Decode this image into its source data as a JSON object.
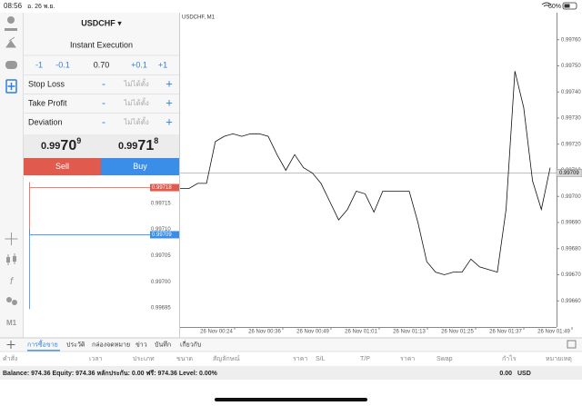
{
  "status_bar": {
    "time": "08:56",
    "date": "อ. 26 พ.ย.",
    "battery": "50%"
  },
  "sidebar": {
    "timeframe": "M1"
  },
  "order_panel": {
    "symbol": "USDCHF ▾",
    "mode": "Instant Execution",
    "volume_steps": [
      "-1",
      "-0.1",
      "0.70",
      "+0.1",
      "+1"
    ],
    "rows": [
      {
        "label": "Stop Loss",
        "minus": "-",
        "value": "ไม่ได้ตั้ง",
        "plus": "+"
      },
      {
        "label": "Take Profit",
        "minus": "-",
        "value": "ไม่ได้ตั้ง",
        "plus": "+"
      },
      {
        "label": "Deviation",
        "minus": "-",
        "value": "ไม่ได้ตั้ง",
        "plus": "+"
      }
    ],
    "sell_price": {
      "head": "0.99",
      "big": "70",
      "sup": "9"
    },
    "buy_price": {
      "head": "0.99",
      "big": "71",
      "sup": "8"
    },
    "sell": "Sell",
    "buy": "Buy"
  },
  "tick_chart": {
    "ylim": [
      0.9969,
      0.9972
    ],
    "yticks": [
      {
        "value": 0.99695,
        "label": "0.99695"
      },
      {
        "value": 0.997,
        "label": "0.99700"
      },
      {
        "value": 0.99705,
        "label": "0.99705"
      },
      {
        "value": 0.9971,
        "label": "0.99710"
      },
      {
        "value": 0.99715,
        "label": "0.99715"
      }
    ],
    "ask": {
      "value": 0.99718,
      "label": "0.99718",
      "color": "#e05a4d"
    },
    "bid": {
      "value": 0.99709,
      "label": "0.99709",
      "color": "#3a8ee8"
    }
  },
  "chart_data": {
    "type": "line",
    "title": "USDCHF, M1",
    "xtick_labels": [
      "26 Nov 00:24",
      "26 Nov 00:36",
      "26 Nov 00:49",
      "26 Nov 01:01",
      "26 Nov 01:13",
      "26 Nov 01:25",
      "26 Nov 01:37",
      "26 Nov 01:49"
    ],
    "values": [
      0.99703,
      0.99703,
      0.99705,
      0.99705,
      0.99721,
      0.99723,
      0.99724,
      0.99723,
      0.99724,
      0.99724,
      0.99723,
      0.99716,
      0.9971,
      0.99716,
      0.99711,
      0.99709,
      0.99705,
      0.99698,
      0.99691,
      0.99695,
      0.99702,
      0.99701,
      0.99694,
      0.99702,
      0.99702,
      0.99702,
      0.99702,
      0.9969,
      0.99675,
      0.99671,
      0.9967,
      0.99671,
      0.99671,
      0.99676,
      0.99673,
      0.99672,
      0.99671,
      0.99695,
      0.99748,
      0.99734,
      0.99706,
      0.99695,
      0.99711
    ],
    "color": "#111111",
    "ylim": [
      0.9965,
      0.9977
    ],
    "yticks": [
      {
        "value": 0.9966,
        "label": "0.99660"
      },
      {
        "value": 0.9967,
        "label": "0.99670"
      },
      {
        "value": 0.9968,
        "label": "0.99680"
      },
      {
        "value": 0.9969,
        "label": "0.99690"
      },
      {
        "value": 0.997,
        "label": "0.99700"
      },
      {
        "value": 0.9971,
        "label": "0.99710"
      },
      {
        "value": 0.9972,
        "label": "0.99720"
      },
      {
        "value": 0.9973,
        "label": "0.99730"
      },
      {
        "value": 0.9974,
        "label": "0.99740"
      },
      {
        "value": 0.9975,
        "label": "0.99750"
      },
      {
        "value": 0.9976,
        "label": "0.99760"
      }
    ],
    "last_price": {
      "value": 0.99709,
      "label": "0.99709"
    }
  },
  "tabs": [
    "การซื้อขาย",
    "ประวัติ",
    "กล่องจดหมาย",
    "ข่าว",
    "บันทึก",
    "เกี่ยวกับ"
  ],
  "table": {
    "headers": [
      "คำสั่ง",
      "เวลา",
      "ประเภท",
      "ขนาด",
      "สัญลักษณ์",
      "ราคา",
      "S/L",
      "T/P",
      "ราคา",
      "Swap",
      "กำไร",
      "หมายเหตุ"
    ],
    "balance": "Balance: 974.36 Equity: 974.36 หลักประกัน: 0.00 ฟรี: 974.36 Level: 0.00%",
    "profit": "0.00",
    "currency": "USD"
  }
}
